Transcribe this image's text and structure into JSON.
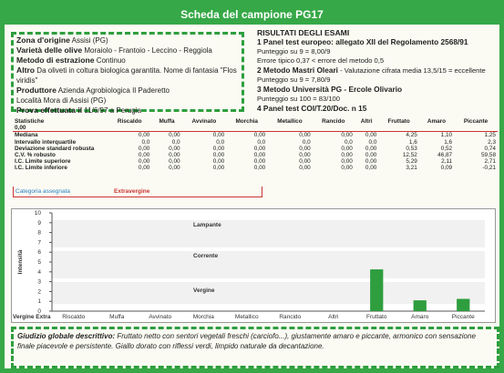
{
  "header": {
    "title": "Scheda del campione PG17"
  },
  "sample_info": [
    {
      "label": "Zona d'origine",
      "value": "Assisi (PG)"
    },
    {
      "label": "Varietà delle olive",
      "value": "Moraiolo - Frantoio - Leccino - Reggiola"
    },
    {
      "label": "Metodo di estrazione",
      "value": "Continuo"
    },
    {
      "label": "Altro",
      "value": "Da oliveti in coltura biologica garantita. Nome di fantasia \"Flos viridis\""
    },
    {
      "label": "Produttore",
      "value": "Azienda Agrobiologica Il Paderetto"
    },
    {
      "value": "Località Mora di Assisi (PG)"
    },
    {
      "label": "Prova effettuata il",
      "value": "11/6/97  a Perugia"
    }
  ],
  "results": {
    "title": "RISULTATI DEGLI ESAMI",
    "items": [
      {
        "heading": "1 Panel test europeo: allegato XII del Regolamento 2568/91",
        "details": [
          "Punteggio su 9 = 8,00/9",
          "Errore tipico 0,37 < errore del metodo 0,5"
        ]
      },
      {
        "heading": "2 Metodo Mastri Oleari",
        "note": " - Valutazione cifrata media 13,5/15 = eccellente",
        "details": [
          "Punteggio su 9 = 7,80/9"
        ]
      },
      {
        "heading": "3 Metodo Università PG - Ercole Olivario",
        "details": [
          "Punteggio su 100 = 83/100"
        ]
      },
      {
        "heading": "4 Panel test COI/T.20/Doc. n 15",
        "details": []
      }
    ]
  },
  "table": {
    "corner": [
      "Statistiche",
      "0,00"
    ],
    "columns": [
      "Riscaldo",
      "Muffa",
      "Avvinato",
      "Morchia",
      "Metallico",
      "Rancido",
      "Altri",
      "Fruttato",
      "Amaro",
      "Piccante"
    ],
    "rows": [
      {
        "label": "Mediana",
        "cells": [
          "0,00",
          "0,00",
          "0,00",
          "0,00",
          "0,00",
          "0,00",
          "0,00",
          "4,25",
          "1,10",
          "1,25"
        ]
      },
      {
        "label": "Intervallo interquartile",
        "cells": [
          "0,0",
          "0,0",
          "0,0",
          "0,0",
          "0,0",
          "0,0",
          "0,0",
          "1,6",
          "1,6",
          "2,3"
        ]
      },
      {
        "label": "Deviazione standard robusta",
        "cells": [
          "0,00",
          "0,00",
          "0,00",
          "0,00",
          "0,00",
          "0,00",
          "0,00",
          "0,53",
          "0,52",
          "0,74"
        ]
      },
      {
        "label": "C.V. % robusto",
        "cells": [
          "0,00",
          "0,00",
          "0,00",
          "0,00",
          "0,00",
          "0,00",
          "0,00",
          "12,52",
          "46,87",
          "59,58"
        ]
      },
      {
        "label": "I.C. Limite superiore",
        "cells": [
          "0,00",
          "0,00",
          "0,00",
          "0,00",
          "0,00",
          "0,00",
          "0,00",
          "5,29",
          "2,11",
          "2,71"
        ]
      },
      {
        "label": "I.C. Limite inferiore",
        "cells": [
          "0,00",
          "0,00",
          "0,00",
          "0,00",
          "0,00",
          "0,00",
          "0,00",
          "3,21",
          "0,09",
          "-0,21"
        ]
      }
    ],
    "category": {
      "label": "Categoria assegnata",
      "value": "Extravergine"
    }
  },
  "chart_data": {
    "type": "bar",
    "y_label": "Intensità",
    "zones": [
      "Lampante",
      "Corrente",
      "Vergine",
      "Vergine Extra"
    ],
    "categories": [
      "Riscaldo",
      "Muffa",
      "Avvinato",
      "Morchia",
      "Metallico",
      "Rancido",
      "Altri",
      "Fruttato",
      "Amaro",
      "Piccante"
    ],
    "values": [
      0,
      0,
      0,
      0,
      0,
      0,
      0,
      4.25,
      1.1,
      1.25
    ],
    "ylim": [
      0,
      10
    ],
    "yticks": [
      0,
      1,
      2,
      3,
      4,
      5,
      6,
      7,
      8,
      9,
      10
    ],
    "color": "#2e9e3e"
  },
  "footer": {
    "label": "Giudizio globale descrittivo:",
    "text": "Fruttato netto con sentori vegetali freschi (carciofo...), giustamente amaro e piccante, armonico con sensazione finale piacevole e persistente. Giallo dorato con riflessi verdi, limpido naturale da decantazione."
  }
}
